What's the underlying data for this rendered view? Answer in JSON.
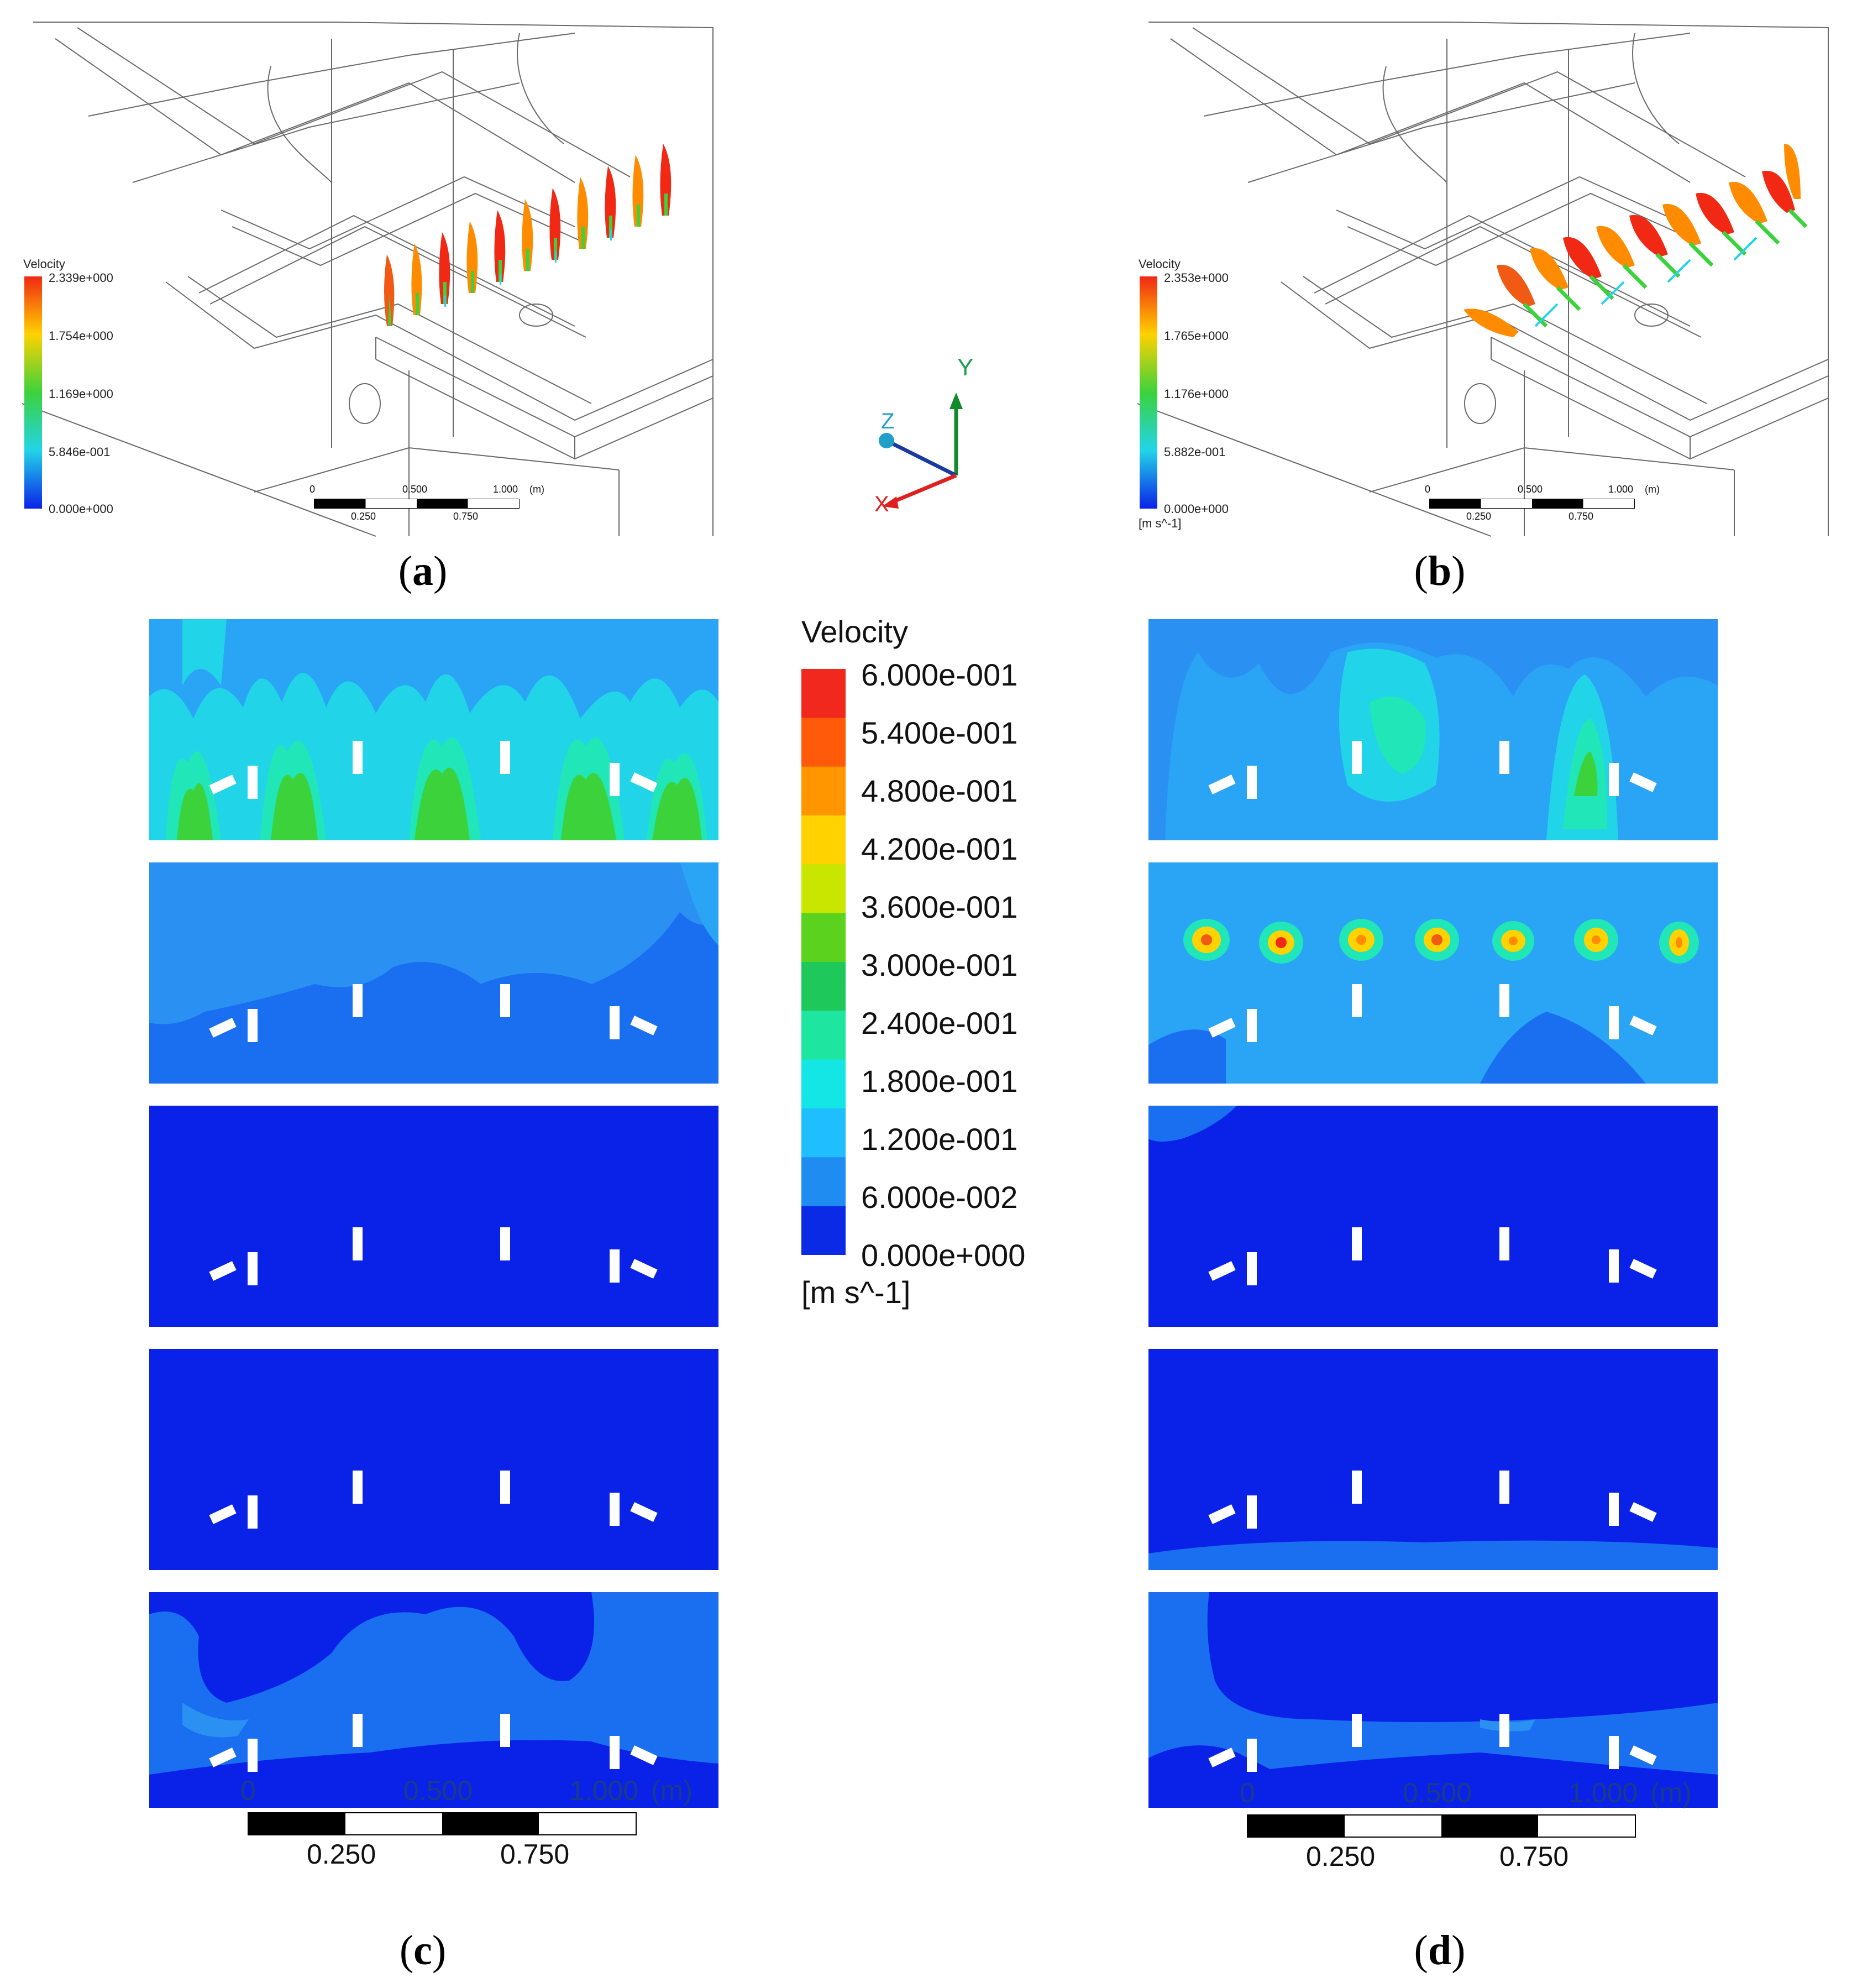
{
  "panels": {
    "a": {
      "label_letter": "a",
      "legend": {
        "title": "Velocity",
        "ticks": [
          "2.339e+000",
          "1.754e+000",
          "1.169e+000",
          "5.846e-001",
          "0.000e+000"
        ]
      },
      "scale_top": [
        "0",
        "0.500",
        "1.000",
        "(m)"
      ],
      "scale_bottom": [
        "0.250",
        "0.750"
      ]
    },
    "b": {
      "label_letter": "b",
      "legend": {
        "title": "Velocity",
        "ticks": [
          "2.353e+000",
          "1.765e+000",
          "1.176e+000",
          "5.882e-001",
          "0.000e+000"
        ],
        "unit": "[m s^-1]"
      },
      "scale_top": [
        "0",
        "0.500",
        "1.000",
        "(m)"
      ],
      "scale_bottom": [
        "0.250",
        "0.750"
      ]
    },
    "c": {
      "label_letter": "c",
      "scale_top": [
        "0",
        "0.500",
        "1.000",
        "(m)"
      ],
      "scale_bottom": [
        "0.250",
        "0.750"
      ]
    },
    "d": {
      "label_letter": "d",
      "scale_top": [
        "0",
        "0.500",
        "1.000",
        "(m)"
      ],
      "scale_bottom": [
        "0.250",
        "0.750"
      ]
    }
  },
  "axis_triad": {
    "y": "Y",
    "z": "Z",
    "x": "X"
  },
  "center_legend": {
    "title": "Velocity",
    "ticks": [
      "6.000e-001",
      "5.400e-001",
      "4.800e-001",
      "4.200e-001",
      "3.600e-001",
      "3.000e-001",
      "2.400e-001",
      "1.800e-001",
      "1.200e-001",
      "6.000e-002",
      "0.000e+000"
    ],
    "unit": "[m s^-1]",
    "colors": [
      "#f0281e",
      "#ff5a0a",
      "#ff9600",
      "#ffd200",
      "#c8e600",
      "#5ad21e",
      "#1ec85a",
      "#1ee6a0",
      "#14e6e6",
      "#1ebeff",
      "#1e8cf0",
      "#0a2ae6"
    ]
  },
  "colors": {
    "deep_blue": "#0a22e8",
    "mid_blue": "#1a6ef0",
    "light_blue": "#2aa4f4",
    "cyan": "#22d4e8",
    "aqua": "#20e6b8",
    "green": "#3cd23c",
    "yellow": "#f0e600",
    "orange": "#ff8c00",
    "red": "#f02814",
    "wire": "#6a6a6a"
  }
}
